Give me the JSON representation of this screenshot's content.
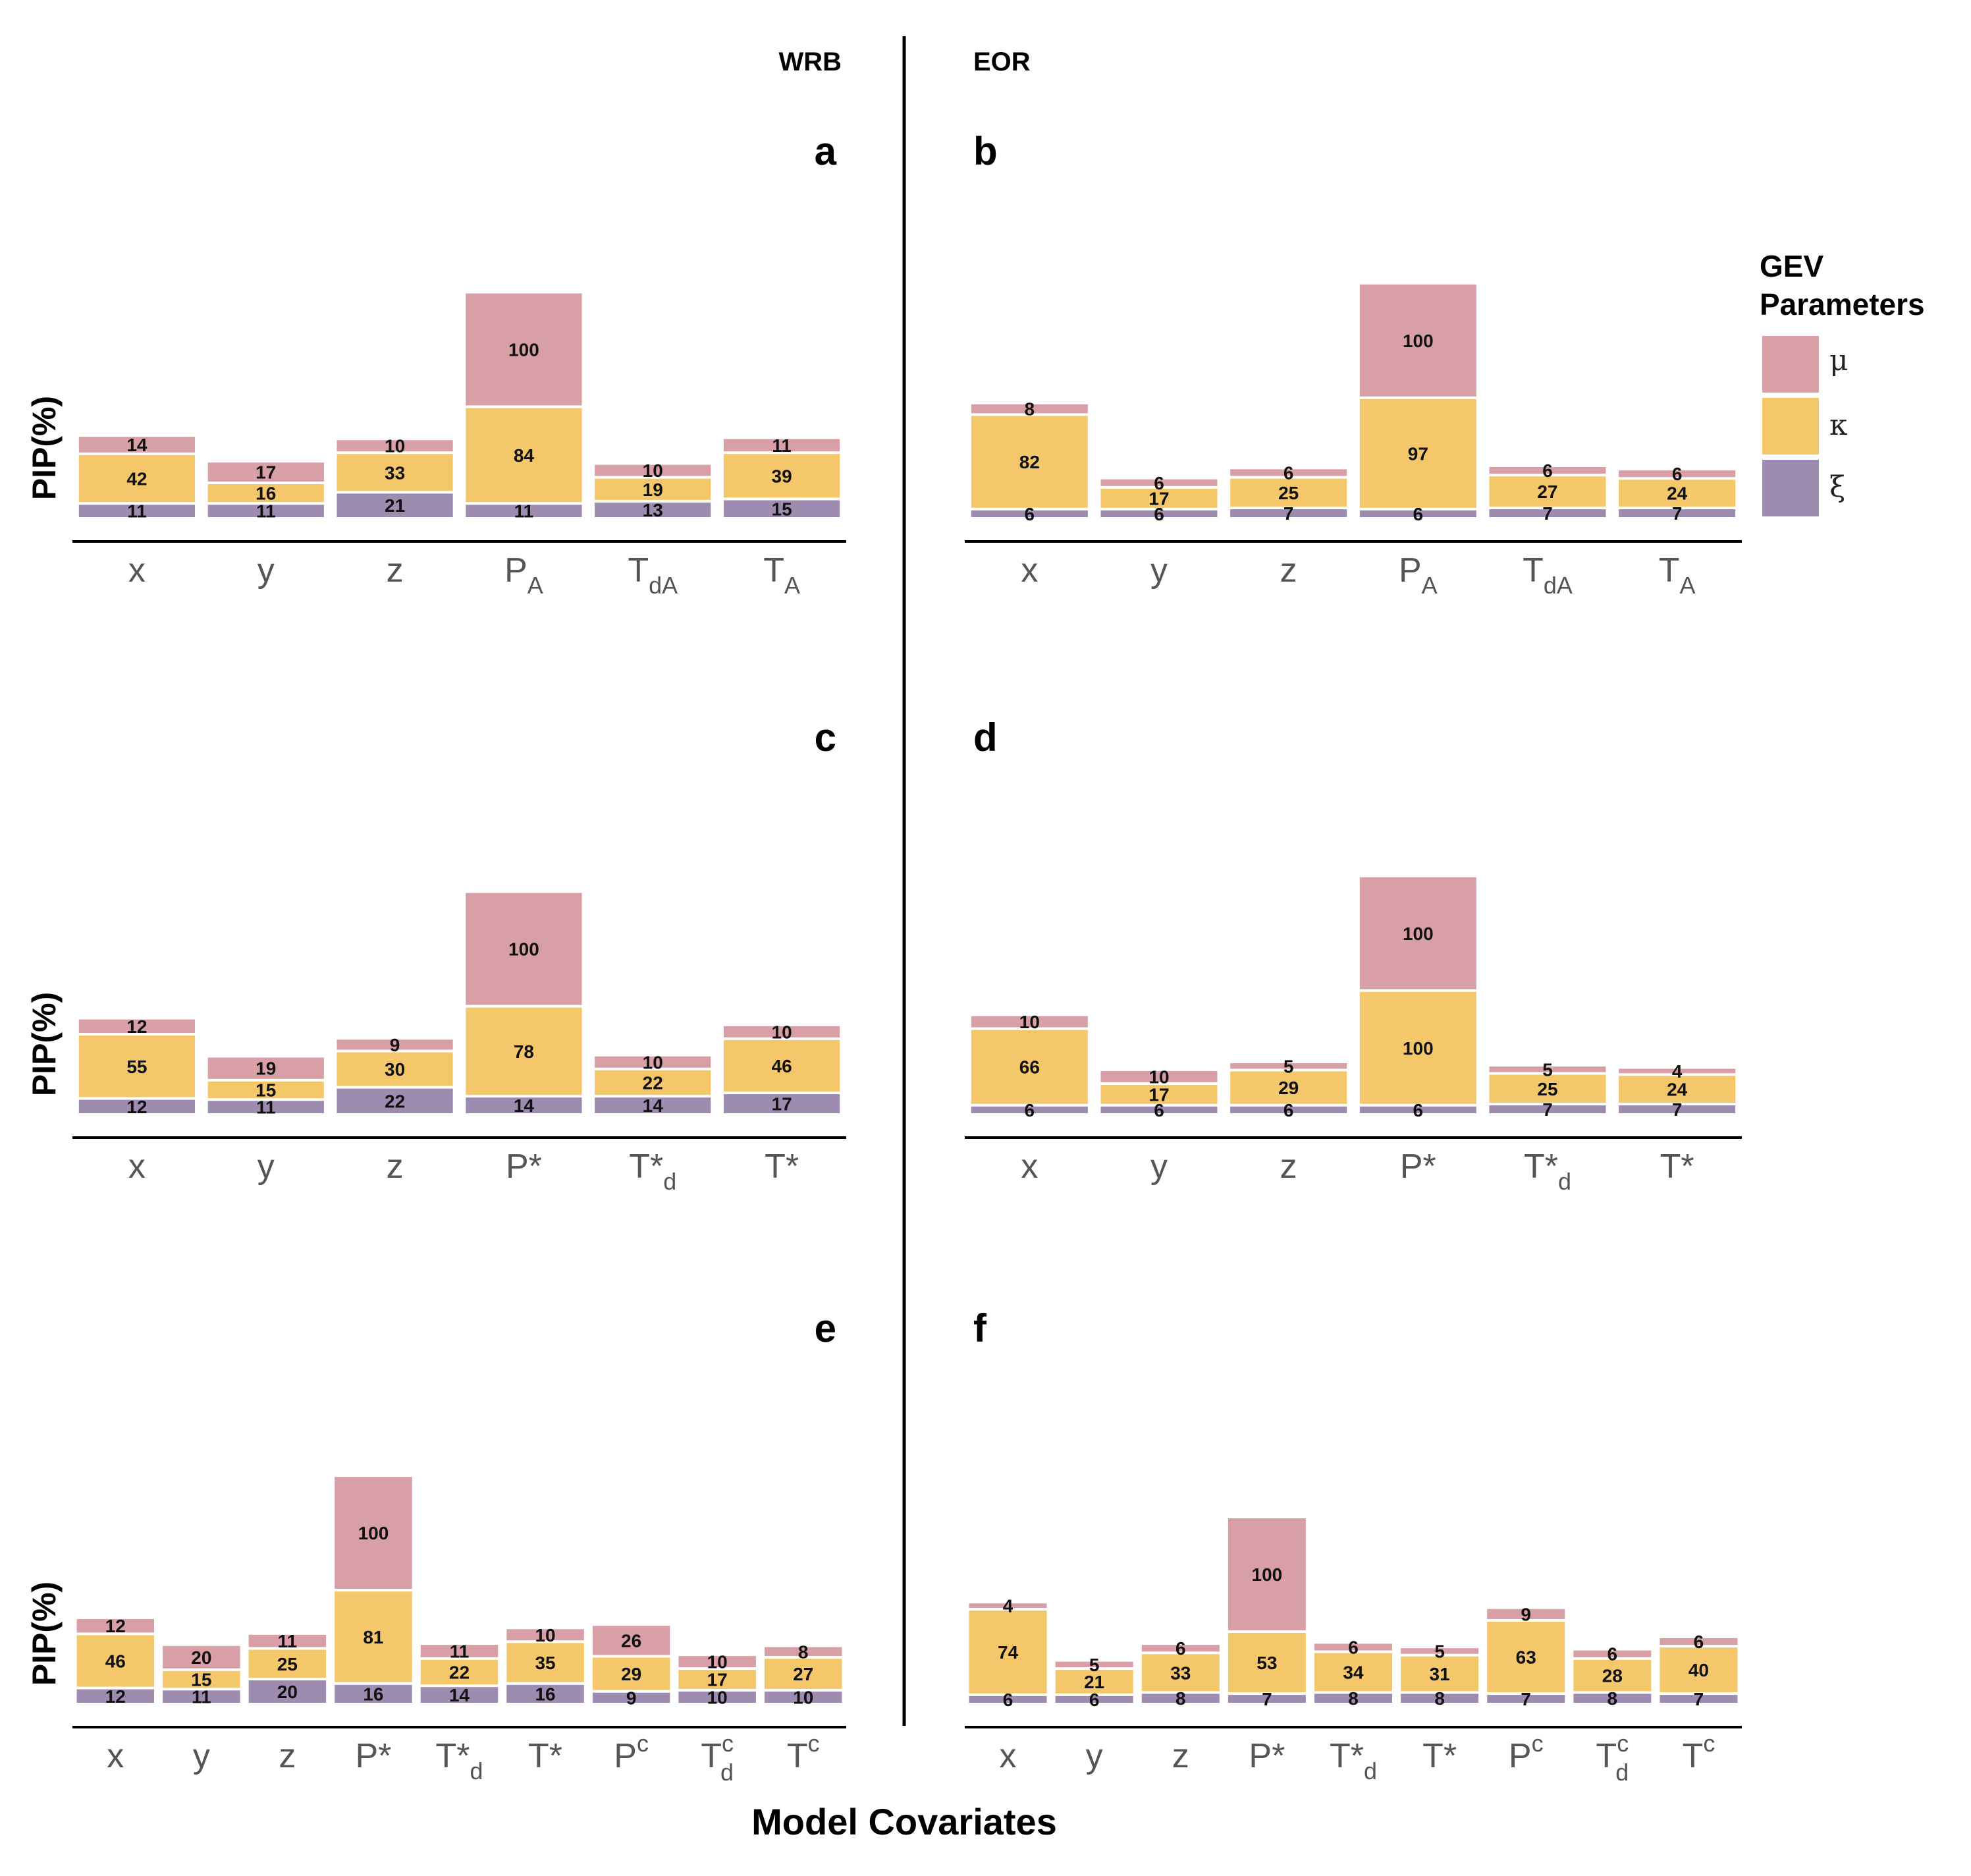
{
  "colors": {
    "mu": "#d8a0a6",
    "kappa": "#f4c86a",
    "xi": "#9d8cb0",
    "axis": "#000000",
    "separator": "#000000"
  },
  "figure": {
    "wrb_title": "WRB",
    "eor_title": "EOR",
    "xlabel": "Model Covariates",
    "ylabel": "PIP(%)"
  },
  "legend": {
    "title_line1": "GEV",
    "title_line2": "Parameters",
    "items": [
      {
        "key": "mu",
        "label": "μ"
      },
      {
        "key": "kappa",
        "label": "κ"
      },
      {
        "key": "xi",
        "label": "ξ"
      }
    ]
  },
  "chart_data": [
    {
      "panel": "a",
      "type": "bar",
      "stacked": true,
      "column": "WRB",
      "ylabel": "PIP(%)",
      "categories": [
        {
          "base": "x",
          "sub": "",
          "sup": ""
        },
        {
          "base": "y",
          "sub": "",
          "sup": ""
        },
        {
          "base": "z",
          "sub": "",
          "sup": ""
        },
        {
          "base": "P",
          "sub": "A",
          "sup": ""
        },
        {
          "base": "T",
          "sub": "dA",
          "sup": ""
        },
        {
          "base": "T",
          "sub": "A",
          "sup": ""
        }
      ],
      "series": [
        {
          "name": "ξ",
          "key": "xi",
          "values": [
            11,
            11,
            21,
            11,
            13,
            15
          ]
        },
        {
          "name": "κ",
          "key": "kappa",
          "values": [
            42,
            16,
            33,
            84,
            19,
            39
          ]
        },
        {
          "name": "μ",
          "key": "mu",
          "values": [
            14,
            17,
            10,
            100,
            10,
            11
          ]
        }
      ]
    },
    {
      "panel": "b",
      "type": "bar",
      "stacked": true,
      "column": "EOR",
      "ylabel": "",
      "categories": [
        {
          "base": "x",
          "sub": "",
          "sup": ""
        },
        {
          "base": "y",
          "sub": "",
          "sup": ""
        },
        {
          "base": "z",
          "sub": "",
          "sup": ""
        },
        {
          "base": "P",
          "sub": "A",
          "sup": ""
        },
        {
          "base": "T",
          "sub": "dA",
          "sup": ""
        },
        {
          "base": "T",
          "sub": "A",
          "sup": ""
        }
      ],
      "series": [
        {
          "name": "ξ",
          "key": "xi",
          "values": [
            6,
            6,
            7,
            6,
            7,
            7
          ]
        },
        {
          "name": "κ",
          "key": "kappa",
          "values": [
            82,
            17,
            25,
            97,
            27,
            24
          ]
        },
        {
          "name": "μ",
          "key": "mu",
          "values": [
            8,
            6,
            6,
            100,
            6,
            6
          ]
        }
      ]
    },
    {
      "panel": "c",
      "type": "bar",
      "stacked": true,
      "column": "WRB",
      "ylabel": "PIP(%)",
      "categories": [
        {
          "base": "x",
          "sub": "",
          "sup": ""
        },
        {
          "base": "y",
          "sub": "",
          "sup": ""
        },
        {
          "base": "z",
          "sub": "",
          "sup": ""
        },
        {
          "base": "P*",
          "sub": "",
          "sup": ""
        },
        {
          "base": "T*",
          "sub": "d",
          "sup": ""
        },
        {
          "base": "T*",
          "sub": "",
          "sup": ""
        }
      ],
      "series": [
        {
          "name": "ξ",
          "key": "xi",
          "values": [
            12,
            11,
            22,
            14,
            14,
            17
          ]
        },
        {
          "name": "κ",
          "key": "kappa",
          "values": [
            55,
            15,
            30,
            78,
            22,
            46
          ]
        },
        {
          "name": "μ",
          "key": "mu",
          "values": [
            12,
            19,
            9,
            100,
            10,
            10
          ]
        }
      ]
    },
    {
      "panel": "d",
      "type": "bar",
      "stacked": true,
      "column": "EOR",
      "ylabel": "",
      "categories": [
        {
          "base": "x",
          "sub": "",
          "sup": ""
        },
        {
          "base": "y",
          "sub": "",
          "sup": ""
        },
        {
          "base": "z",
          "sub": "",
          "sup": ""
        },
        {
          "base": "P*",
          "sub": "",
          "sup": ""
        },
        {
          "base": "T*",
          "sub": "d",
          "sup": ""
        },
        {
          "base": "T*",
          "sub": "",
          "sup": ""
        }
      ],
      "series": [
        {
          "name": "ξ",
          "key": "xi",
          "values": [
            6,
            6,
            6,
            6,
            7,
            7
          ]
        },
        {
          "name": "κ",
          "key": "kappa",
          "values": [
            66,
            17,
            29,
            100,
            25,
            24
          ]
        },
        {
          "name": "μ",
          "key": "mu",
          "values": [
            10,
            10,
            5,
            100,
            5,
            4
          ]
        }
      ]
    },
    {
      "panel": "e",
      "type": "bar",
      "stacked": true,
      "column": "WRB",
      "ylabel": "PIP(%)",
      "categories": [
        {
          "base": "x",
          "sub": "",
          "sup": ""
        },
        {
          "base": "y",
          "sub": "",
          "sup": ""
        },
        {
          "base": "z",
          "sub": "",
          "sup": ""
        },
        {
          "base": "P*",
          "sub": "",
          "sup": ""
        },
        {
          "base": "T*",
          "sub": "d",
          "sup": ""
        },
        {
          "base": "T*",
          "sub": "",
          "sup": ""
        },
        {
          "base": "P",
          "sub": "",
          "sup": "c"
        },
        {
          "base": "T",
          "sub": "d",
          "sup": "c"
        },
        {
          "base": "T",
          "sub": "",
          "sup": "c"
        }
      ],
      "series": [
        {
          "name": "ξ",
          "key": "xi",
          "values": [
            12,
            11,
            20,
            16,
            14,
            16,
            9,
            10,
            10
          ]
        },
        {
          "name": "κ",
          "key": "kappa",
          "values": [
            46,
            15,
            25,
            81,
            22,
            35,
            29,
            17,
            27
          ]
        },
        {
          "name": "μ",
          "key": "mu",
          "values": [
            12,
            20,
            11,
            100,
            11,
            10,
            26,
            10,
            8
          ]
        }
      ]
    },
    {
      "panel": "f",
      "type": "bar",
      "stacked": true,
      "column": "EOR",
      "ylabel": "",
      "categories": [
        {
          "base": "x",
          "sub": "",
          "sup": ""
        },
        {
          "base": "y",
          "sub": "",
          "sup": ""
        },
        {
          "base": "z",
          "sub": "",
          "sup": ""
        },
        {
          "base": "P*",
          "sub": "",
          "sup": ""
        },
        {
          "base": "T*",
          "sub": "d",
          "sup": ""
        },
        {
          "base": "T*",
          "sub": "",
          "sup": ""
        },
        {
          "base": "P",
          "sub": "",
          "sup": "c"
        },
        {
          "base": "T",
          "sub": "d",
          "sup": "c"
        },
        {
          "base": "T",
          "sub": "",
          "sup": "c"
        }
      ],
      "series": [
        {
          "name": "ξ",
          "key": "xi",
          "values": [
            6,
            6,
            8,
            7,
            8,
            8,
            7,
            8,
            7
          ]
        },
        {
          "name": "κ",
          "key": "kappa",
          "values": [
            74,
            21,
            33,
            53,
            34,
            31,
            63,
            28,
            40
          ]
        },
        {
          "name": "μ",
          "key": "mu",
          "values": [
            4,
            5,
            6,
            100,
            6,
            5,
            9,
            6,
            6
          ]
        }
      ]
    }
  ]
}
